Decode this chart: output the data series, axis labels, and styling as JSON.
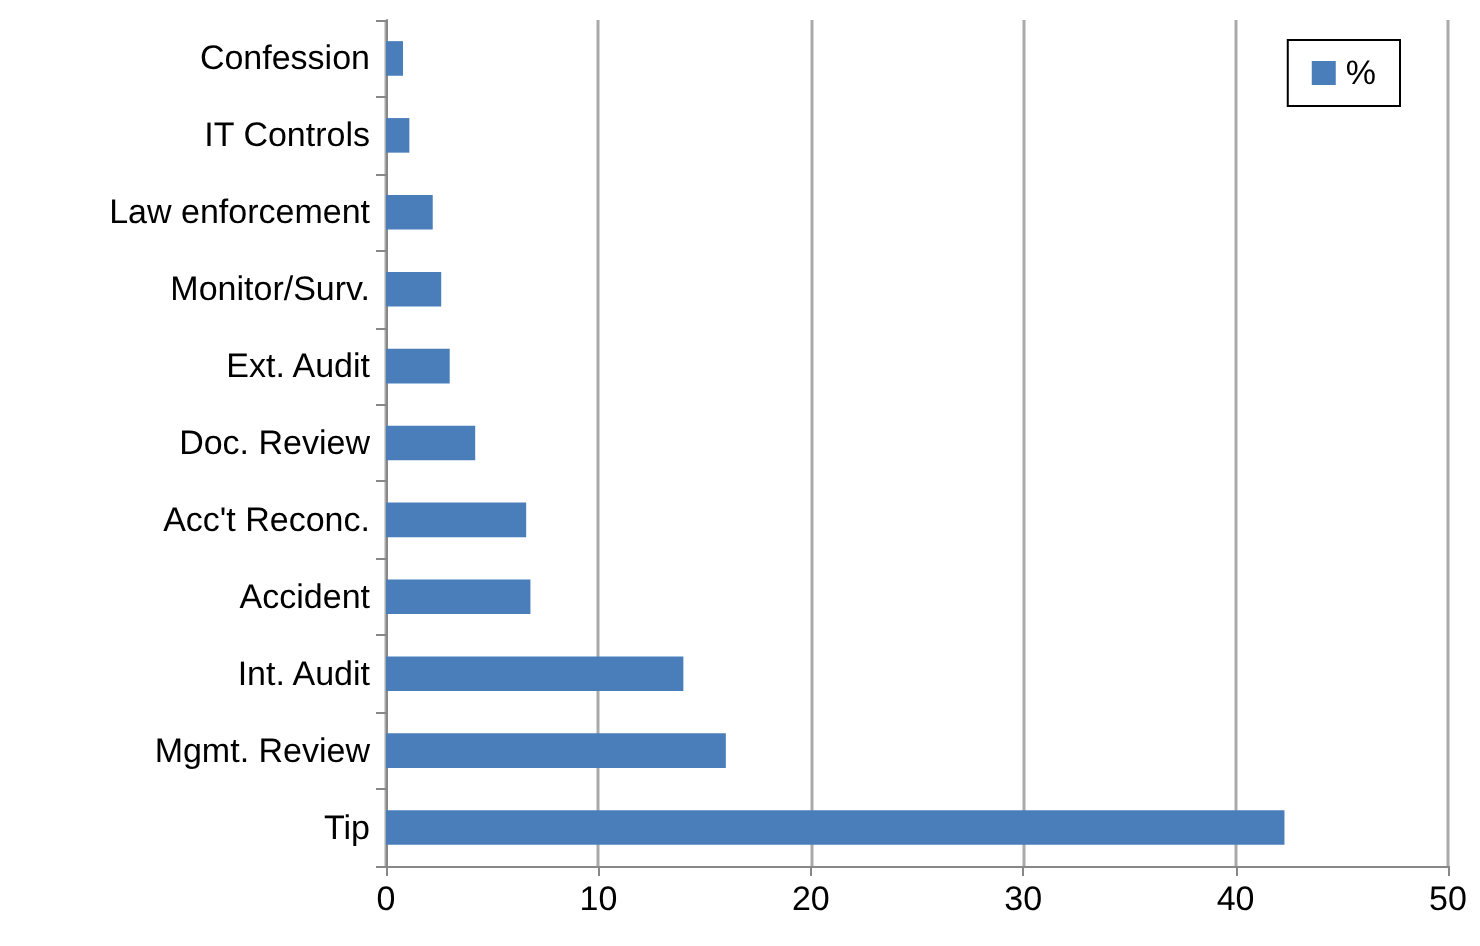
{
  "chart_data": {
    "type": "bar",
    "orientation": "horizontal",
    "categories": [
      "Confession",
      "IT Controls",
      "Law enforcement",
      "Monitor/Surv.",
      "Ext. Audit",
      "Doc. Review",
      "Acc't Reconc.",
      "Accident",
      "Int. Audit",
      "Mgmt. Review",
      "Tip"
    ],
    "series": [
      {
        "name": "%",
        "color": "#4a7ebb",
        "values": [
          0.8,
          1.1,
          2.2,
          2.6,
          3.0,
          4.2,
          6.6,
          6.8,
          14.0,
          16.0,
          42.3
        ]
      }
    ],
    "xlim": [
      0,
      50
    ],
    "xticks": [
      0,
      10,
      20,
      30,
      40,
      50
    ],
    "grid": "x",
    "legend": "top right"
  }
}
